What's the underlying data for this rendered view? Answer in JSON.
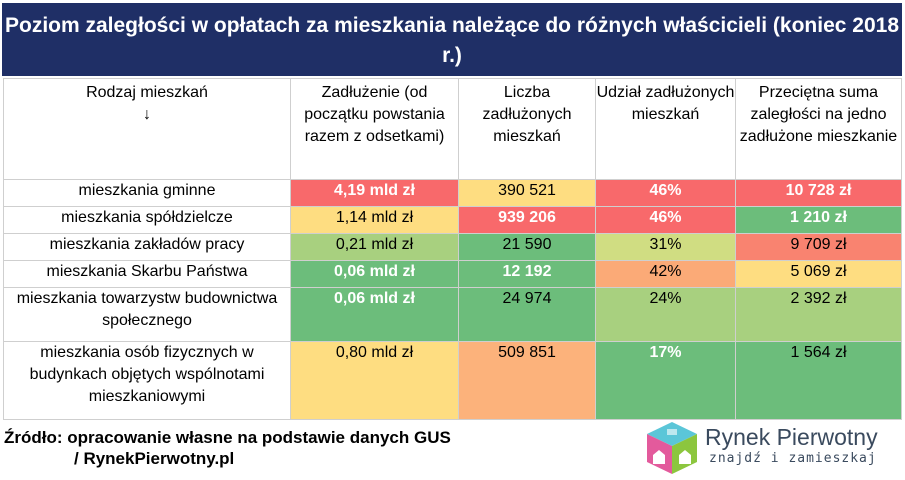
{
  "title": "Poziom zaległości w opłatach za mieszkania należące do różnych właścicieli (koniec 2018 r.)",
  "header": {
    "col1": "Rodzaj mieszkań",
    "col1_arrow": "↓",
    "col2": "Zadłużenie (od początku powstania razem z odsetkami)",
    "col3": "Liczba zadłużonych mieszkań",
    "col4": "Udział zadłużonych mieszkań",
    "col5": "Przeciętna suma zaległości na jedno zadłużone mieszkanie"
  },
  "rows": [
    {
      "name": "mieszkania gminne",
      "debt": "4,19 mld zł",
      "count": "390 521",
      "share": "46%",
      "avg": "10 728 zł"
    },
    {
      "name": "mieszkania spółdzielcze",
      "debt": "1,14 mld zł",
      "count": "939 206",
      "share": "46%",
      "avg": "1 210 zł"
    },
    {
      "name": "mieszkania zakładów pracy",
      "debt": "0,21 mld zł",
      "count": "21 590",
      "share": "31%",
      "avg": "9 709 zł"
    },
    {
      "name": "mieszkania Skarbu Państwa",
      "debt": "0,06 mld zł",
      "count": "12 192",
      "share": "42%",
      "avg": "5 069 zł"
    },
    {
      "name": "mieszkania towarzystw budownictwa społecznego",
      "debt": "0,06 mld zł",
      "count": "24 974",
      "share": "24%",
      "avg": "2 392 zł"
    },
    {
      "name": "mieszkania osób fizycznych w budynkach objętych wspólnotami mieszkaniowymi",
      "debt": "0,80 mld zł",
      "count": "509 851",
      "share": "17%",
      "avg": "1 564 zł"
    }
  ],
  "footer": {
    "line1": "Źródło: opracowanie własne na podstawie danych GUS",
    "line2": "/ RynekPierwotny.pl"
  },
  "logo": {
    "brand": "Rynek Pierwotny",
    "tagline": "znajdź i zamieszkaj",
    "icon": "house-cube-logo-icon"
  },
  "colors": {
    "title_bg": "#1f2f66",
    "red": "#f8696b",
    "green": "#6cbd7b",
    "yellow": "#fedd81"
  }
}
